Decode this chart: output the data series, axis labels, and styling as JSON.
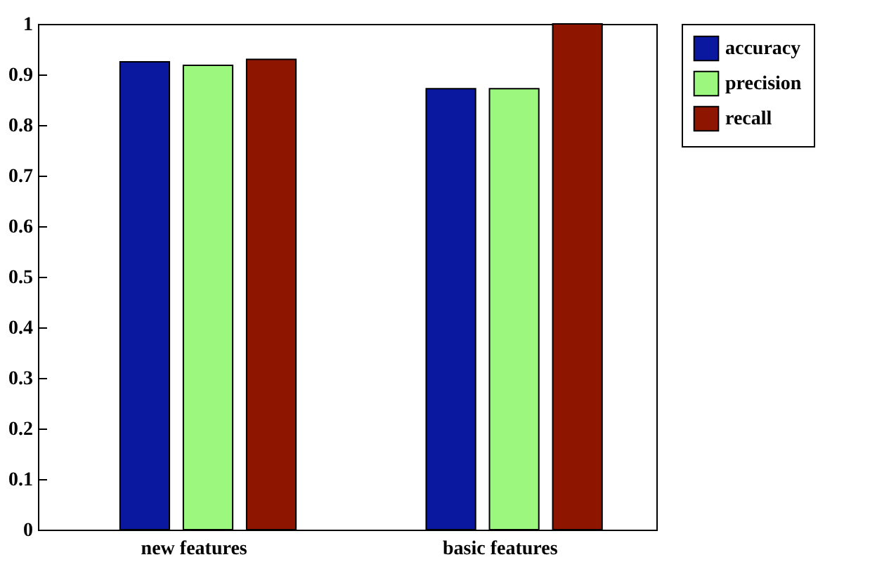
{
  "chart_data": {
    "type": "bar",
    "categories": [
      "new features",
      "basic features"
    ],
    "series": [
      {
        "name": "accuracy",
        "color": "#0a18a0",
        "values": [
          0.925,
          0.872
        ]
      },
      {
        "name": "precision",
        "color": "#9cf77f",
        "values": [
          0.918,
          0.872
        ]
      },
      {
        "name": "recall",
        "color": "#8e1500",
        "values": [
          0.93,
          1.0
        ]
      }
    ],
    "ylim": [
      0,
      1
    ],
    "yticks": [
      0,
      0.1,
      0.2,
      0.3,
      0.4,
      0.5,
      0.6,
      0.7,
      0.8,
      0.9,
      1
    ],
    "grid": false,
    "legend": "right"
  }
}
